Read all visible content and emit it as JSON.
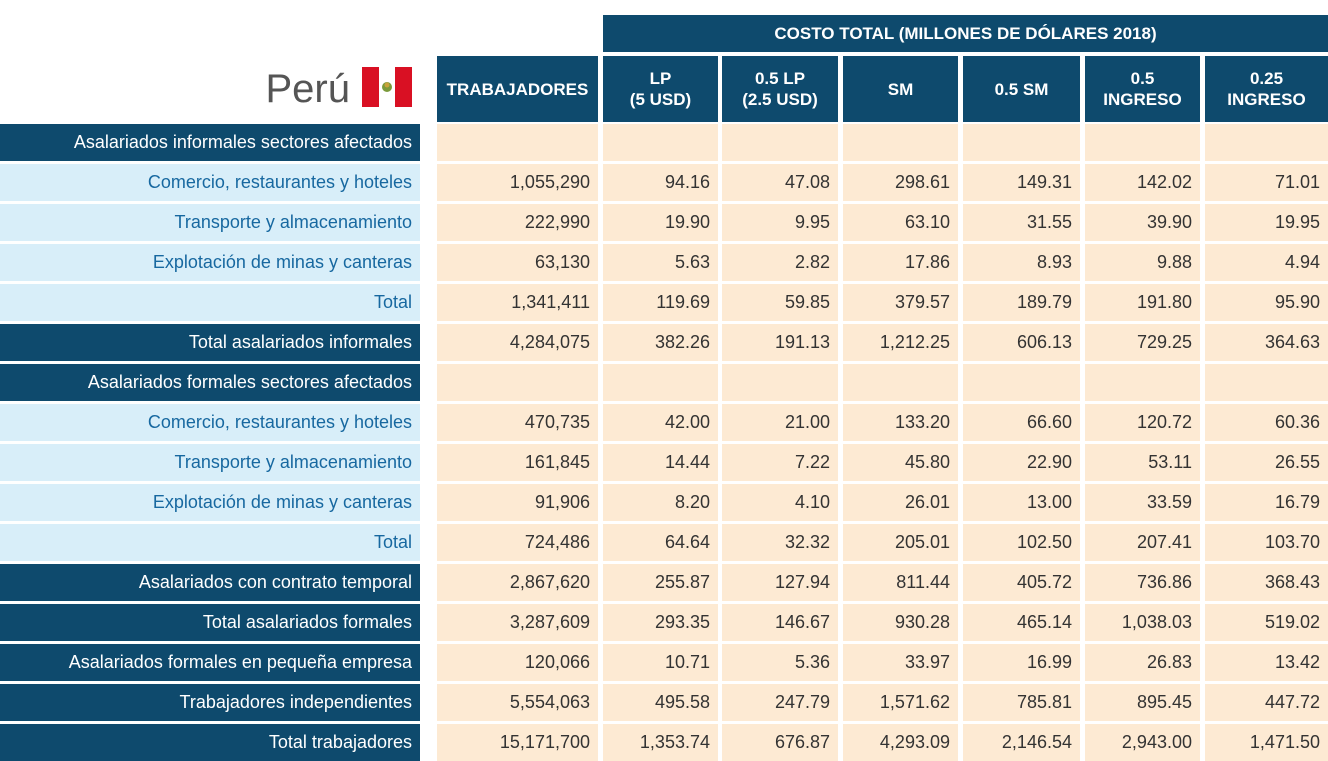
{
  "title": "Perú",
  "table": {
    "group_header": "COSTO TOTAL (MILLONES DE DÓLARES 2018)",
    "columns": [
      [
        "TRABAJADORES"
      ],
      [
        "LP",
        "(5 USD)"
      ],
      [
        "0.5 LP",
        "(2.5 USD)"
      ],
      [
        "SM"
      ],
      [
        "0.5 SM"
      ],
      [
        "0.5",
        "INGRESO"
      ],
      [
        "0.25",
        "INGRESO"
      ]
    ],
    "rows": [
      {
        "label": "Asalariados informales sectores afectados"
      },
      {
        "label": "Comercio, restaurantes y hoteles",
        "values": [
          "1,055,290",
          "94.16",
          "47.08",
          "298.61",
          "149.31",
          "142.02",
          "71.01"
        ]
      },
      {
        "label": "Transporte y almacenamiento",
        "values": [
          "222,990",
          "19.90",
          "9.95",
          "63.10",
          "31.55",
          "39.90",
          "19.95"
        ]
      },
      {
        "label": "Explotación de minas y canteras",
        "values": [
          "63,130",
          "5.63",
          "2.82",
          "17.86",
          "8.93",
          "9.88",
          "4.94"
        ]
      },
      {
        "label": "Total",
        "values": [
          "1,341,411",
          "119.69",
          "59.85",
          "379.57",
          "189.79",
          "191.80",
          "95.90"
        ]
      },
      {
        "label": "Total asalariados informales",
        "values": [
          "4,284,075",
          "382.26",
          "191.13",
          "1,212.25",
          "606.13",
          "729.25",
          "364.63"
        ]
      },
      {
        "label": "Asalariados formales sectores afectados"
      },
      {
        "label": "Comercio, restaurantes y hoteles",
        "values": [
          "470,735",
          "42.00",
          "21.00",
          "133.20",
          "66.60",
          "120.72",
          "60.36"
        ]
      },
      {
        "label": "Transporte y almacenamiento",
        "values": [
          "161,845",
          "14.44",
          "7.22",
          "45.80",
          "22.90",
          "53.11",
          "26.55"
        ]
      },
      {
        "label": "Explotación de minas y canteras",
        "values": [
          "91,906",
          "8.20",
          "4.10",
          "26.01",
          "13.00",
          "33.59",
          "16.79"
        ]
      },
      {
        "label": "Total",
        "values": [
          "724,486",
          "64.64",
          "32.32",
          "205.01",
          "102.50",
          "207.41",
          "103.70"
        ]
      },
      {
        "label": "Asalariados con contrato temporal",
        "values": [
          "2,867,620",
          "255.87",
          "127.94",
          "811.44",
          "405.72",
          "736.86",
          "368.43"
        ]
      },
      {
        "label": "Total asalariados formales",
        "values": [
          "3,287,609",
          "293.35",
          "146.67",
          "930.28",
          "465.14",
          "1,038.03",
          "519.02"
        ]
      },
      {
        "label": "Asalariados formales en pequeña empresa",
        "values": [
          "120,066",
          "10.71",
          "5.36",
          "33.97",
          "16.99",
          "26.83",
          "13.42"
        ]
      },
      {
        "label": "Trabajadores independientes",
        "values": [
          "5,554,063",
          "495.58",
          "247.79",
          "1,571.62",
          "785.81",
          "895.45",
          "447.72"
        ]
      },
      {
        "label": "Total trabajadores",
        "values": [
          "15,171,700",
          "1,353.74",
          "676.87",
          "4,293.09",
          "2,146.54",
          "2,943.00",
          "1,471.50"
        ]
      }
    ]
  }
}
